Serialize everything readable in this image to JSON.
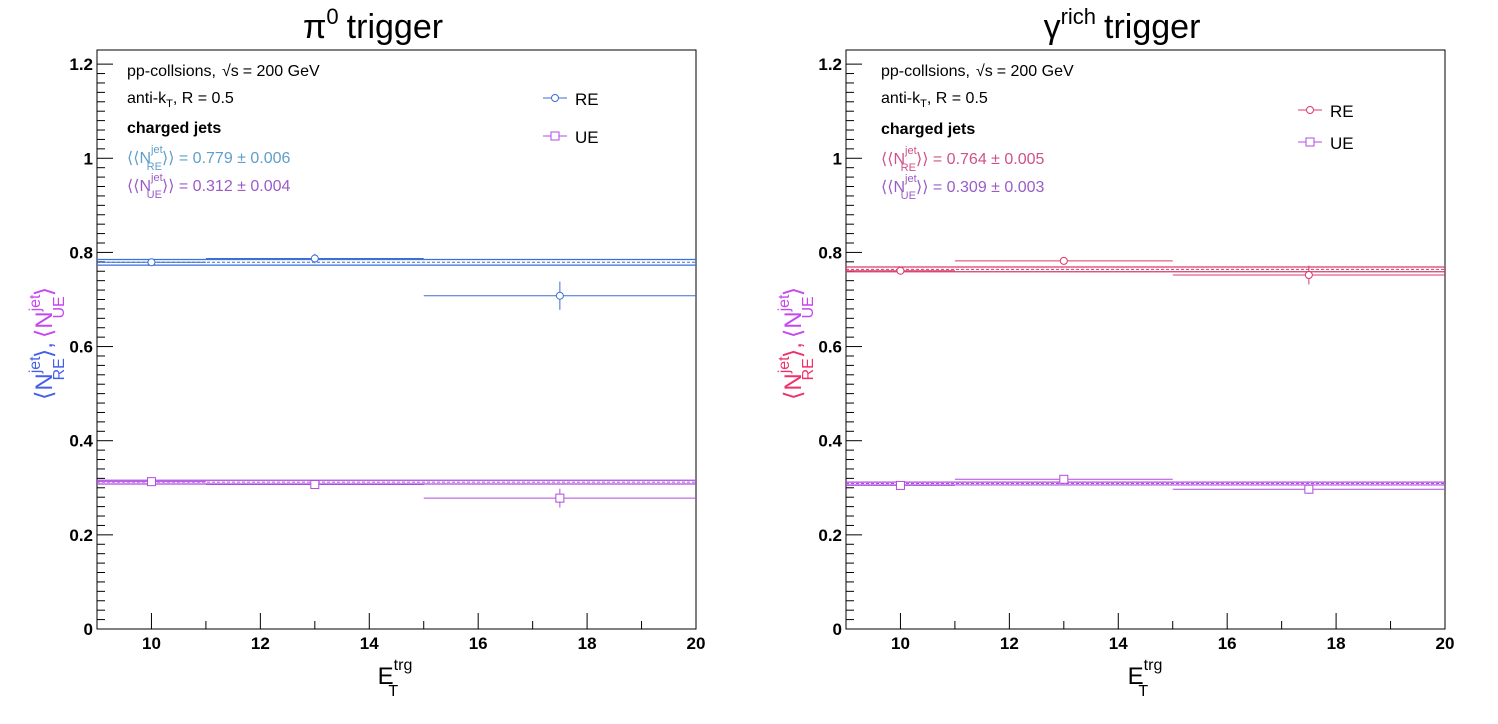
{
  "chart_data": [
    {
      "type": "scatter",
      "title": "trigger",
      "title_symbol": "π",
      "title_sup": "0",
      "xlabel": "E",
      "xlabel_sup": "trg",
      "xlabel_sub": "T",
      "ylabel_parts": {
        "re_open": "⟨N",
        "re_sup": "jet",
        "re_sub": "RE",
        "re_close": "⟩,",
        "ue_open": "⟨N",
        "ue_sup": "jet",
        "ue_sub": "UE",
        "ue_close": "⟩"
      },
      "xlim": [
        9,
        20
      ],
      "ylim": [
        0,
        1.23
      ],
      "x_ticks": [
        "10",
        "12",
        "14",
        "16",
        "18",
        "20"
      ],
      "y_ticks": [
        "0",
        "0.2",
        "0.4",
        "0.6",
        "0.8",
        "1",
        "1.2"
      ],
      "annotations": {
        "line1_prefix": "pp-collsions,",
        "line1_sqrt": "√s",
        "line1_suffix": "= 200 GeV",
        "line2_prefix": "anti-k",
        "line2_sub": "T",
        "line2_suffix": ", R = 0.5",
        "line3": "charged jets",
        "mean_re": {
          "prefix": "⟨⟨N",
          "sup": "jet",
          "sub": "RE",
          "suffix": "⟩⟩ = 0.779 ± 0.006"
        },
        "mean_ue": {
          "prefix": "⟨⟨N",
          "sup": "jet",
          "sub": "UE",
          "suffix": "⟩⟩ = 0.312 ± 0.004"
        }
      },
      "legend": {
        "position": "top-right",
        "entries": [
          "RE",
          "UE"
        ]
      },
      "colors": {
        "re": "#3a6fd8",
        "ue": "#b04be0",
        "re_mean": "#5f9ec9",
        "ue_mean": "#9a5cc8",
        "ylabel_re": "#4560e8",
        "ylabel_ue": "#c447f0"
      },
      "series": [
        {
          "name": "RE",
          "marker": "circle",
          "x": [
            10,
            13,
            17.5
          ],
          "xerr": [
            1,
            2,
            2.5
          ],
          "y": [
            0.779,
            0.787,
            0.708
          ],
          "yerr": [
            0.004,
            0.01,
            0.03
          ],
          "fit": {
            "value": 0.779,
            "err": 0.006
          }
        },
        {
          "name": "UE",
          "marker": "square",
          "x": [
            10,
            13,
            17.5
          ],
          "xerr": [
            1,
            2,
            2.5
          ],
          "y": [
            0.313,
            0.307,
            0.278
          ],
          "yerr": [
            0.004,
            0.006,
            0.02
          ],
          "fit": {
            "value": 0.312,
            "err": 0.004
          }
        }
      ]
    },
    {
      "type": "scatter",
      "title": "trigger",
      "title_symbol": "γ",
      "title_sup": "rich",
      "xlabel": "E",
      "xlabel_sup": "trg",
      "xlabel_sub": "T",
      "ylabel_parts": {
        "re_open": "⟨N",
        "re_sup": "jet",
        "re_sub": "RE",
        "re_close": "⟩,",
        "ue_open": "⟨N",
        "ue_sup": "jet",
        "ue_sub": "UE",
        "ue_close": "⟩"
      },
      "xlim": [
        9,
        20
      ],
      "ylim": [
        0,
        1.23
      ],
      "x_ticks": [
        "10",
        "12",
        "14",
        "16",
        "18",
        "20"
      ],
      "y_ticks": [
        "0",
        "0.2",
        "0.4",
        "0.6",
        "0.8",
        "1",
        "1.2"
      ],
      "annotations": {
        "line1_prefix": "pp-collsions,",
        "line1_sqrt": "√s",
        "line1_suffix": "= 200 GeV",
        "line2_prefix": "anti-k",
        "line2_sub": "T",
        "line2_suffix": ", R = 0.5",
        "line3": "charged jets",
        "mean_re": {
          "prefix": "⟨⟨N",
          "sup": "jet",
          "sub": "RE",
          "suffix": "⟩⟩ = 0.764 ± 0.005"
        },
        "mean_ue": {
          "prefix": "⟨⟨N",
          "sup": "jet",
          "sub": "UE",
          "suffix": "⟩⟩ = 0.309 ± 0.003"
        }
      },
      "legend": {
        "position": "top-right",
        "entries": [
          "RE",
          "UE"
        ]
      },
      "colors": {
        "re": "#d83a6a",
        "ue": "#b04be0",
        "re_mean": "#d0508a",
        "ue_mean": "#9a5cc8",
        "ylabel_re": "#f0306a",
        "ylabel_ue": "#c447f0"
      },
      "series": [
        {
          "name": "RE",
          "marker": "circle",
          "x": [
            10,
            13,
            17.5
          ],
          "xerr": [
            1,
            2,
            2.5
          ],
          "y": [
            0.761,
            0.782,
            0.752
          ],
          "yerr": [
            0.004,
            0.006,
            0.02
          ],
          "fit": {
            "value": 0.764,
            "err": 0.005
          }
        },
        {
          "name": "UE",
          "marker": "square",
          "x": [
            10,
            13,
            17.5
          ],
          "xerr": [
            1,
            2,
            2.5
          ],
          "y": [
            0.305,
            0.318,
            0.297
          ],
          "yerr": [
            0.003,
            0.005,
            0.01
          ],
          "fit": {
            "value": 0.309,
            "err": 0.003
          }
        }
      ]
    }
  ]
}
